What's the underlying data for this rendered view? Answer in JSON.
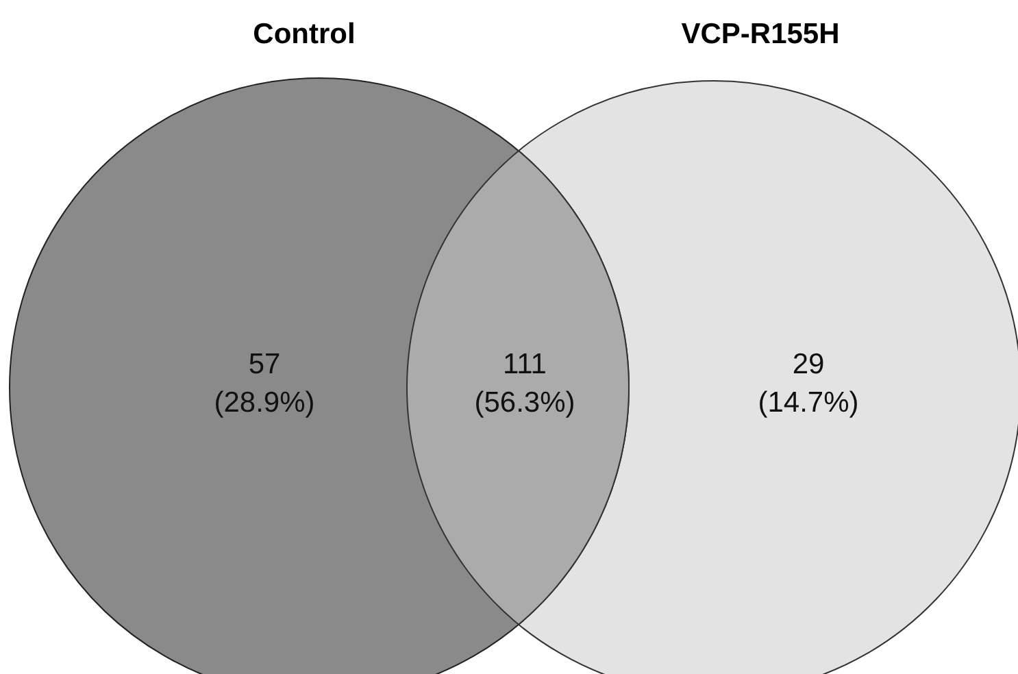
{
  "chart_data": {
    "type": "other",
    "categories": [
      null,
      null,
      null
    ],
    "colors": [
      "#8a8a8a",
      "#ababab",
      "#e3e3e3"
    ],
    "values": [
      57,
      111,
      29
    ],
    "data_labels": true,
    "annotations": [
      "Control",
      "VCP-R155H",
      "(28.9%)",
      "(56.3%)",
      "(14.7%)"
    ]
  }
}
